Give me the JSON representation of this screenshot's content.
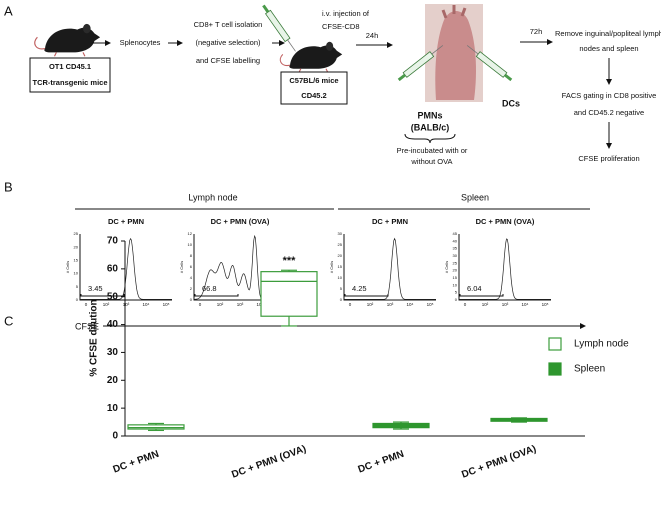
{
  "panel_a": {
    "label": "A",
    "donor_box": [
      "OT1 CD45.1",
      "TCR-transgenic mice"
    ],
    "step1": "Splenocytes",
    "step2": [
      "CD8+ T cell isolation",
      "(negative selection)",
      "and CFSE labelling"
    ],
    "injection": [
      "i.v. injection of",
      "CFSE-CD8"
    ],
    "recipient_box": [
      "C57BL/6 mice",
      "CD45.2"
    ],
    "time1": "24h",
    "pmns": [
      "PMNs",
      "(BALB/c)"
    ],
    "dcs": "DCs",
    "preincubation": [
      "Pre-incubated with or",
      "without OVA"
    ],
    "time2": "72h",
    "steps_right": [
      "Remove inguinal/popliteal lymph",
      "nodes and spleen",
      "FACS gating in CD8 positive",
      "and CD45.2 negative",
      "CFSE proliferation"
    ]
  },
  "panel_b": {
    "label": "B",
    "groups": [
      "Lymph node",
      "Spleen"
    ],
    "y_axis_label": "# Cells",
    "xticks": [
      "0",
      "10²",
      "10³",
      "10⁴",
      "10⁵"
    ],
    "x_axis_label": "CFSE",
    "histograms": [
      {
        "title": "DC + PMN",
        "gate": 3.45,
        "yticks": [
          25,
          20,
          15,
          10,
          5,
          0
        ]
      },
      {
        "title": "DC + PMN (OVA)",
        "gate": 66.8,
        "yticks": [
          12,
          10,
          8,
          6,
          4,
          2,
          0
        ]
      },
      {
        "title": "DC + PMN",
        "gate": 4.25,
        "yticks": [
          30,
          25,
          20,
          15,
          10,
          5,
          0
        ]
      },
      {
        "title": "DC + PMN (OVA)",
        "gate": 6.04,
        "yticks": [
          45,
          40,
          35,
          30,
          25,
          20,
          15,
          10,
          5,
          0
        ]
      }
    ]
  },
  "chart_data": {
    "type": "box",
    "label": "C",
    "y_label": "% CFSE dilution",
    "categories": [
      "DC + PMN",
      "DC + PMN (OVA)",
      "DC + PMN",
      "DC + PMN (OVA)"
    ],
    "ylim": [
      0,
      70
    ],
    "yticks": [
      0,
      10,
      20,
      30,
      40,
      50,
      60,
      70
    ],
    "annotation": "***",
    "series": [
      {
        "name": "Lymph node",
        "color": "#3c9c3c",
        "filled": false,
        "boxes": [
          {
            "min": 2,
            "q1": 2.5,
            "median": 3,
            "q3": 4,
            "max": 4.5
          },
          {
            "min": 39.5,
            "q1": 43,
            "median": 55.5,
            "q3": 59,
            "max": 59.5
          },
          null,
          null
        ]
      },
      {
        "name": "Spleen",
        "color": "#2e962e",
        "filled": true,
        "boxes": [
          null,
          null,
          {
            "min": 2.5,
            "q1": 3,
            "median": 3.5,
            "q3": 4.5,
            "max": 5
          },
          {
            "min": 5,
            "q1": 5.3,
            "median": 5.8,
            "q3": 6.3,
            "max": 6.5
          }
        ]
      }
    ]
  }
}
